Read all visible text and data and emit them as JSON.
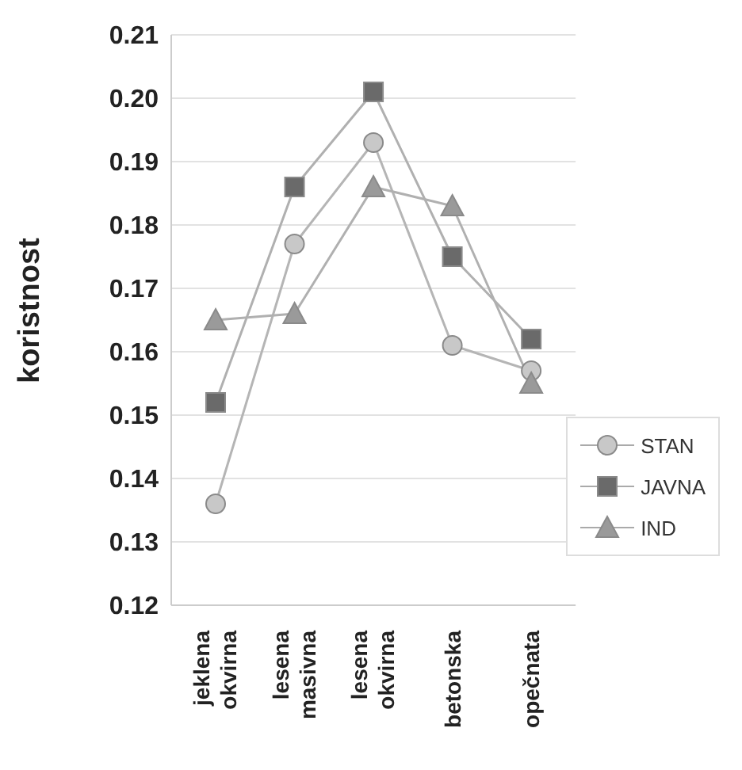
{
  "chart_data": {
    "type": "line",
    "ylabel": "koristnost",
    "categories": [
      "jeklena okvirna",
      "lesena masivna",
      "lesena okvirna",
      "betonska",
      "opečnata"
    ],
    "series": [
      {
        "name": "STAN",
        "color": "#c8c8c8",
        "marker": "circle",
        "values": [
          0.136,
          0.177,
          0.193,
          0.161,
          0.157
        ]
      },
      {
        "name": "JAVNA",
        "color": "#6a6a6a",
        "marker": "square",
        "values": [
          0.152,
          0.186,
          0.201,
          0.175,
          0.162
        ]
      },
      {
        "name": "IND",
        "color": "#9a9a9a",
        "marker": "triangle",
        "values": [
          0.165,
          0.166,
          0.186,
          0.183,
          0.155
        ]
      }
    ],
    "ylim": [
      0.12,
      0.21
    ],
    "yticks": [
      0.12,
      0.13,
      0.14,
      0.15,
      0.16,
      0.17,
      0.18,
      0.19,
      {
        "value": 0.2,
        "label": "0.20"
      },
      0.21
    ],
    "grid": "y",
    "legend": "bottom right",
    "line_style": "solid"
  }
}
